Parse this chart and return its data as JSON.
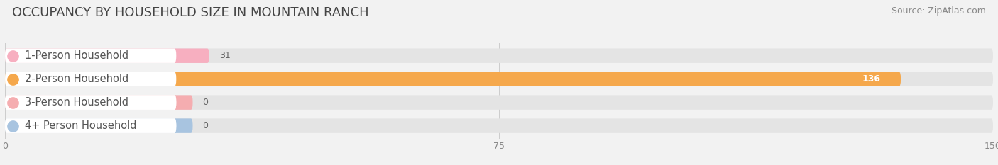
{
  "title": "OCCUPANCY BY HOUSEHOLD SIZE IN MOUNTAIN RANCH",
  "source_text": "Source: ZipAtlas.com",
  "categories": [
    "1-Person Household",
    "2-Person Household",
    "3-Person Household",
    "4+ Person Household"
  ],
  "values": [
    31,
    136,
    0,
    0
  ],
  "bar_colors": [
    "#f7afc0",
    "#f5a84c",
    "#f5adb0",
    "#a8c4e0"
  ],
  "xlim": [
    0,
    150
  ],
  "xticks": [
    0,
    75,
    150
  ],
  "background_color": "#f2f2f2",
  "bar_background_color": "#e4e4e4",
  "title_fontsize": 13,
  "source_fontsize": 9,
  "label_fontsize": 10.5,
  "value_fontsize": 9,
  "bar_height": 0.62,
  "figsize": [
    14.06,
    2.33
  ],
  "dpi": 100
}
